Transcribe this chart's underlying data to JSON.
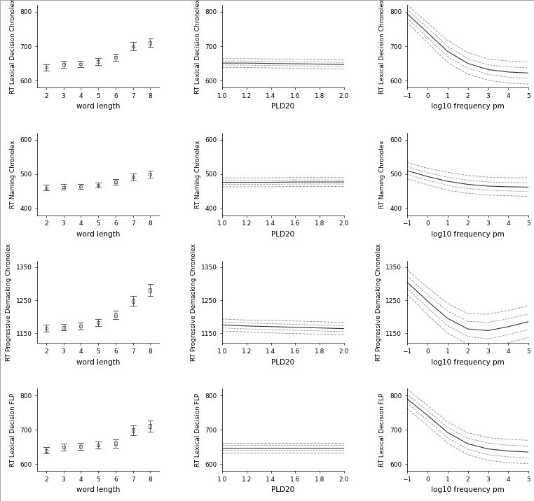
{
  "rows": [
    {
      "ylabel": "RT Lexical Decision Chronolex",
      "ylim": [
        580,
        820
      ],
      "yticks": [
        600,
        700,
        800
      ],
      "scatter": {
        "x": [
          2,
          3,
          4,
          5,
          6,
          7,
          8
        ],
        "y": [
          638,
          648,
          648,
          655,
          668,
          700,
          710
        ],
        "y_lo": [
          628,
          638,
          639,
          645,
          658,
          688,
          698
        ],
        "y_hi": [
          648,
          658,
          657,
          665,
          678,
          712,
          722
        ]
      },
      "pld_curve": {
        "x": [
          1.0,
          1.2,
          1.4,
          1.6,
          1.8,
          2.0
        ],
        "y": [
          651,
          651,
          650,
          649,
          648,
          647
        ],
        "y_lo1": [
          645,
          645,
          644,
          643,
          642,
          641
        ],
        "y_hi1": [
          657,
          657,
          656,
          655,
          654,
          653
        ],
        "y_lo2": [
          638,
          638,
          637,
          636,
          635,
          634
        ],
        "y_hi2": [
          664,
          664,
          663,
          662,
          661,
          660
        ]
      },
      "freq_curve": {
        "x": [
          -1,
          0,
          1,
          2,
          3,
          4,
          5
        ],
        "y": [
          795,
          740,
          685,
          650,
          632,
          625,
          622
        ],
        "y_lo1": [
          782,
          726,
          670,
          636,
          618,
          610,
          607
        ],
        "y_hi1": [
          808,
          754,
          700,
          664,
          646,
          640,
          637
        ],
        "y_lo2": [
          769,
          711,
          653,
          619,
          601,
          593,
          590
        ],
        "y_hi2": [
          821,
          769,
          717,
          681,
          663,
          657,
          654
        ]
      }
    },
    {
      "ylabel": "RT Naming Chronolex",
      "ylim": [
        380,
        620
      ],
      "yticks": [
        400,
        500,
        600
      ],
      "scatter": {
        "x": [
          2,
          3,
          4,
          5,
          6,
          7,
          8
        ],
        "y": [
          460,
          462,
          464,
          468,
          477,
          492,
          500
        ],
        "y_lo": [
          452,
          454,
          456,
          460,
          469,
          482,
          490
        ],
        "y_hi": [
          468,
          470,
          472,
          476,
          485,
          502,
          510
        ]
      },
      "pld_curve": {
        "x": [
          1.0,
          1.2,
          1.4,
          1.6,
          1.8,
          2.0
        ],
        "y": [
          476,
          476,
          476,
          477,
          477,
          477
        ],
        "y_lo1": [
          470,
          470,
          470,
          471,
          471,
          471
        ],
        "y_hi1": [
          482,
          482,
          482,
          483,
          483,
          483
        ],
        "y_lo2": [
          463,
          463,
          463,
          464,
          464,
          464
        ],
        "y_hi2": [
          489,
          489,
          489,
          490,
          490,
          490
        ]
      },
      "freq_curve": {
        "x": [
          -1,
          0,
          1,
          2,
          3,
          4,
          5
        ],
        "y": [
          510,
          493,
          479,
          470,
          465,
          463,
          462
        ],
        "y_lo1": [
          499,
          482,
          467,
          458,
          453,
          451,
          449
        ],
        "y_hi1": [
          521,
          504,
          491,
          482,
          477,
          475,
          475
        ],
        "y_lo2": [
          486,
          469,
          453,
          444,
          439,
          437,
          435
        ],
        "y_hi2": [
          534,
          517,
          505,
          496,
          491,
          489,
          489
        ]
      }
    },
    {
      "ylabel": "RT Progressive Demasking Chronolex",
      "ylim": [
        1120,
        1370
      ],
      "yticks": [
        1150,
        1250,
        1350
      ],
      "scatter": {
        "x": [
          2,
          3,
          4,
          5,
          6,
          7,
          8
        ],
        "y": [
          1165,
          1168,
          1172,
          1182,
          1205,
          1248,
          1280
        ],
        "y_lo": [
          1155,
          1158,
          1162,
          1172,
          1192,
          1233,
          1262
        ],
        "y_hi": [
          1175,
          1178,
          1182,
          1192,
          1218,
          1263,
          1298
        ]
      },
      "pld_curve": {
        "x": [
          1.0,
          1.2,
          1.4,
          1.6,
          1.8,
          2.0
        ],
        "y": [
          1175,
          1172,
          1170,
          1168,
          1166,
          1164
        ],
        "y_lo1": [
          1166,
          1163,
          1161,
          1159,
          1157,
          1155
        ],
        "y_hi1": [
          1184,
          1181,
          1179,
          1177,
          1175,
          1173
        ],
        "y_lo2": [
          1157,
          1154,
          1151,
          1149,
          1147,
          1145
        ],
        "y_hi2": [
          1193,
          1190,
          1189,
          1187,
          1185,
          1183
        ]
      },
      "freq_curve": {
        "x": [
          -1,
          0,
          1,
          2,
          3,
          4,
          5
        ],
        "y": [
          1305,
          1248,
          1195,
          1163,
          1158,
          1170,
          1185
        ],
        "y_lo1": [
          1287,
          1228,
          1173,
          1140,
          1133,
          1146,
          1161
        ],
        "y_hi1": [
          1323,
          1268,
          1217,
          1186,
          1183,
          1194,
          1209
        ],
        "y_lo2": [
          1268,
          1207,
          1150,
          1117,
          1108,
          1121,
          1137
        ],
        "y_hi2": [
          1342,
          1289,
          1240,
          1209,
          1208,
          1219,
          1233
        ]
      }
    },
    {
      "ylabel": "RT Lexical Decision FLP",
      "ylim": [
        580,
        820
      ],
      "yticks": [
        600,
        700,
        800
      ],
      "scatter": {
        "x": [
          2,
          3,
          4,
          5,
          6,
          7,
          8
        ],
        "y": [
          640,
          650,
          651,
          655,
          660,
          698,
          710
        ],
        "y_lo": [
          630,
          640,
          641,
          645,
          648,
          684,
          694
        ],
        "y_hi": [
          650,
          660,
          661,
          665,
          672,
          712,
          726
        ]
      },
      "pld_curve": {
        "x": [
          1.0,
          1.2,
          1.4,
          1.6,
          1.8,
          2.0
        ],
        "y": [
          648,
          648,
          648,
          648,
          648,
          648
        ],
        "y_lo1": [
          641,
          641,
          641,
          641,
          641,
          641
        ],
        "y_hi1": [
          655,
          655,
          655,
          655,
          655,
          655
        ],
        "y_lo2": [
          634,
          634,
          634,
          634,
          634,
          634
        ],
        "y_hi2": [
          662,
          662,
          662,
          662,
          662,
          662
        ]
      },
      "freq_curve": {
        "x": [
          -1,
          0,
          1,
          2,
          3,
          4,
          5
        ],
        "y": [
          790,
          742,
          692,
          659,
          644,
          638,
          635
        ],
        "y_lo1": [
          777,
          728,
          677,
          643,
          627,
          621,
          618
        ],
        "y_hi1": [
          803,
          756,
          707,
          675,
          661,
          655,
          652
        ],
        "y_lo2": [
          762,
          713,
          661,
          627,
          611,
          604,
          601
        ],
        "y_hi2": [
          818,
          771,
          723,
          691,
          677,
          672,
          669
        ]
      }
    }
  ],
  "col_xlabels": [
    "word length",
    "PLD20",
    "log10 frequency pm"
  ],
  "col2_xlim": [
    1.0,
    2.0
  ],
  "col2_xticks": [
    1.0,
    1.2,
    1.4,
    1.6,
    1.8,
    2.0
  ],
  "col3_xlim": [
    -1,
    5
  ],
  "col3_xticks": [
    -1,
    0,
    1,
    2,
    3,
    4,
    5
  ],
  "col1_xlim": [
    1.5,
    8.5
  ],
  "col1_xticks": [
    2,
    3,
    4,
    5,
    6,
    7,
    8
  ],
  "scatter_color": "#555555",
  "curve_color": "#333333",
  "ci_dash_color": "#888888",
  "background": "#ffffff",
  "fontsize_ylabel": 6.5,
  "fontsize_xlabel": 7.5,
  "fontsize_tick": 6.5
}
